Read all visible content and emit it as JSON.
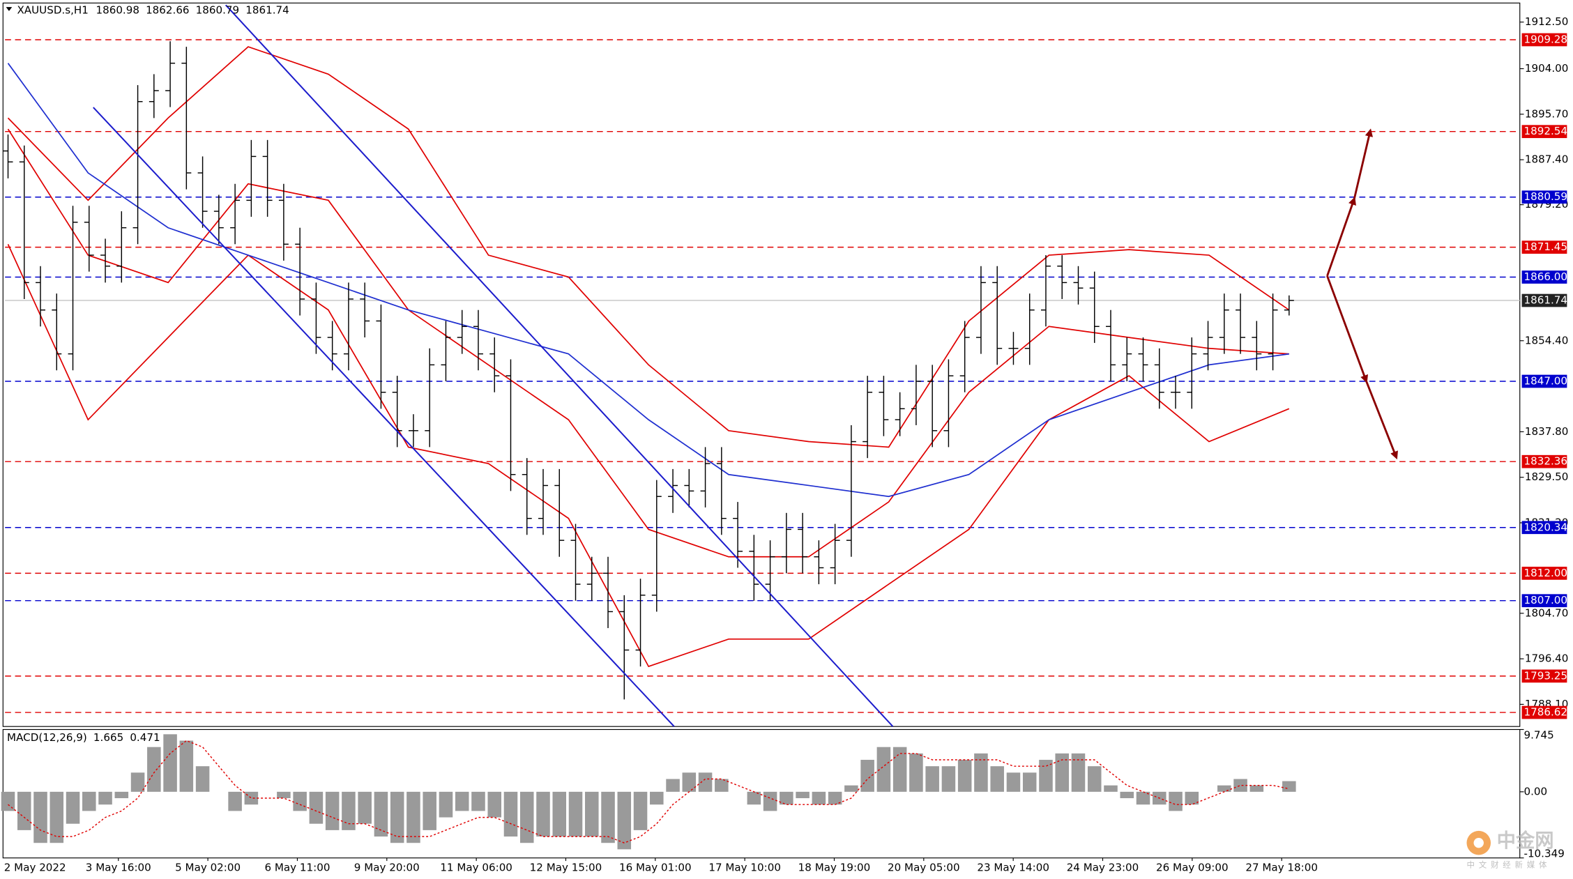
{
  "chart_data": {
    "type": "candlestick",
    "header": {
      "symbol": "XAUUSD.s,H1",
      "open": 1860.98,
      "high": 1862.66,
      "low": 1860.79,
      "close": 1861.74
    },
    "categories": [
      "2 May 2022",
      "3 May 16:00",
      "5 May 02:00",
      "6 May 11:00",
      "9 May 20:00",
      "11 May 06:00",
      "12 May 15:00",
      "16 May 01:00",
      "17 May 10:00",
      "18 May 19:00",
      "20 May 05:00",
      "23 May 14:00",
      "24 May 23:00",
      "26 May 09:00",
      "27 May 18:00"
    ],
    "candles": {
      "open": [
        1889,
        1887,
        1865,
        1860,
        1852,
        1876,
        1870,
        1868,
        1875,
        1898,
        1900,
        1905,
        1885,
        1878,
        1875,
        1880,
        1888,
        1880,
        1872,
        1862,
        1855,
        1852,
        1862,
        1858,
        1845,
        1838,
        1838,
        1850,
        1855,
        1857,
        1852,
        1848,
        1830,
        1822,
        1828,
        1818,
        1810,
        1812,
        1805,
        1798,
        1808,
        1826,
        1828,
        1827,
        1832,
        1822,
        1816,
        1810,
        1815,
        1820,
        1815,
        1813,
        1818,
        1836,
        1845,
        1840,
        1842,
        1847,
        1838,
        1848,
        1855,
        1865,
        1853,
        1853,
        1860,
        1868,
        1865,
        1864,
        1857,
        1850,
        1852,
        1850,
        1845,
        1845,
        1852,
        1855,
        1860,
        1855,
        1852,
        1860
      ],
      "high": [
        1892,
        1890,
        1868,
        1863,
        1879,
        1879,
        1873,
        1878,
        1901,
        1903,
        1909,
        1908,
        1888,
        1881,
        1883,
        1891,
        1891,
        1883,
        1875,
        1865,
        1858,
        1865,
        1865,
        1861,
        1848,
        1841,
        1853,
        1858,
        1860,
        1860,
        1855,
        1851,
        1833,
        1831,
        1831,
        1821,
        1815,
        1815,
        1808,
        1811,
        1829,
        1831,
        1831,
        1835,
        1835,
        1825,
        1819,
        1818,
        1823,
        1823,
        1818,
        1821,
        1839,
        1848,
        1848,
        1845,
        1850,
        1850,
        1851,
        1858,
        1868,
        1868,
        1856,
        1863,
        1870,
        1870,
        1868,
        1867,
        1860,
        1855,
        1855,
        1853,
        1848,
        1855,
        1858,
        1863,
        1863,
        1858,
        1863,
        1862.66
      ],
      "low": [
        1884,
        1862,
        1857,
        1849,
        1849,
        1867,
        1865,
        1865,
        1872,
        1895,
        1897,
        1882,
        1875,
        1872,
        1872,
        1877,
        1877,
        1869,
        1859,
        1852,
        1849,
        1849,
        1855,
        1842,
        1835,
        1835,
        1835,
        1847,
        1852,
        1849,
        1845,
        1827,
        1819,
        1819,
        1815,
        1807,
        1807,
        1802,
        1789,
        1795,
        1805,
        1823,
        1824,
        1824,
        1819,
        1813,
        1807,
        1807,
        1812,
        1812,
        1810,
        1810,
        1815,
        1833,
        1837,
        1837,
        1839,
        1835,
        1835,
        1845,
        1852,
        1850,
        1850,
        1850,
        1857,
        1862,
        1861,
        1854,
        1847,
        1847,
        1847,
        1842,
        1842,
        1842,
        1849,
        1852,
        1852,
        1849,
        1849,
        1859
      ],
      "close": [
        1887,
        1865,
        1860,
        1852,
        1876,
        1870,
        1868,
        1875,
        1898,
        1900,
        1905,
        1885,
        1878,
        1875,
        1880,
        1888,
        1880,
        1872,
        1862,
        1855,
        1852,
        1862,
        1858,
        1845,
        1838,
        1838,
        1850,
        1855,
        1857,
        1852,
        1848,
        1830,
        1822,
        1828,
        1818,
        1810,
        1812,
        1805,
        1798,
        1808,
        1826,
        1828,
        1827,
        1832,
        1822,
        1816,
        1810,
        1815,
        1820,
        1815,
        1813,
        1818,
        1836,
        1845,
        1840,
        1842,
        1847,
        1838,
        1848,
        1855,
        1865,
        1853,
        1853,
        1860,
        1868,
        1865,
        1864,
        1857,
        1850,
        1852,
        1850,
        1845,
        1845,
        1852,
        1855,
        1860,
        1855,
        1852,
        1860,
        1861.74
      ],
      "color": "#000000"
    },
    "overlays": [
      {
        "color": "#e00000",
        "values": [
          1895,
          1880,
          1895,
          1908,
          1903,
          1893,
          1870,
          1866,
          1850,
          1838,
          1836,
          1835,
          1858,
          1870,
          1871,
          1870,
          1860
        ]
      },
      {
        "color": "#e00000",
        "values": [
          1893,
          1870,
          1865,
          1883,
          1880,
          1860,
          1850,
          1840,
          1820,
          1815,
          1815,
          1825,
          1845,
          1857,
          1855,
          1853,
          1852
        ]
      },
      {
        "color": "#e00000",
        "values": [
          1872,
          1840,
          1855,
          1870,
          1860,
          1835,
          1832,
          1822,
          1795,
          1800,
          1800,
          1810,
          1820,
          1840,
          1848,
          1836,
          1842
        ]
      },
      {
        "color": "#1f2fd0",
        "values": [
          1905,
          1885,
          1875,
          1870,
          1865,
          1860,
          1856,
          1852,
          1840,
          1830,
          1828,
          1826,
          1830,
          1840,
          1845,
          1850,
          1852
        ]
      }
    ],
    "ylim": [
      1784.06,
      1915.61
    ],
    "yticks": [
      {
        "value": 1912.5,
        "label": "1912.50"
      },
      {
        "value": 1904,
        "label": "1904.00"
      },
      {
        "value": 1895.7,
        "label": "1895.70"
      },
      {
        "value": 1887.4,
        "label": "1887.40"
      },
      {
        "value": 1879.2,
        "label": "1879.20"
      },
      {
        "value": 1854.4,
        "label": "1854.40"
      },
      {
        "value": 1837.8,
        "label": "1837.80"
      },
      {
        "value": 1829.5,
        "label": "1829.50"
      },
      {
        "value": 1821.2,
        "label": "1821.20"
      },
      {
        "value": 1804.7,
        "label": "1804.70"
      },
      {
        "value": 1796.4,
        "label": "1796.40"
      },
      {
        "value": 1788.1,
        "label": "1788.10"
      }
    ],
    "levels": [
      {
        "value": 1909.28,
        "label": "1909.28",
        "color": "#e00000",
        "dashed": true
      },
      {
        "value": 1892.54,
        "label": "1892.54",
        "color": "#e00000",
        "dashed": true
      },
      {
        "value": 1880.59,
        "label": "1880.59",
        "color": "#0000cd",
        "dashed": true
      },
      {
        "value": 1871.45,
        "label": "1871.45",
        "color": "#e00000",
        "dashed": true
      },
      {
        "value": 1866.0,
        "label": "1866.00",
        "color": "#0000cd",
        "dashed": true
      },
      {
        "value": 1861.74,
        "label": "1861.74",
        "color": "#222222",
        "dashed": false
      },
      {
        "value": 1847.0,
        "label": "1847.00",
        "color": "#0000cd",
        "dashed": true
      },
      {
        "value": 1832.36,
        "label": "1832.36",
        "color": "#e00000",
        "dashed": true
      },
      {
        "value": 1820.34,
        "label": "1820.34",
        "color": "#0000cd",
        "dashed": true
      },
      {
        "value": 1812.0,
        "label": "1812.00",
        "color": "#e00000",
        "dashed": true
      },
      {
        "value": 1807.0,
        "label": "1807.00",
        "color": "#0000cd",
        "dashed": true
      },
      {
        "value": 1793.25,
        "label": "1793.25",
        "color": "#e00000",
        "dashed": true
      },
      {
        "value": 1786.62,
        "label": "1786.62",
        "color": "#e00000",
        "dashed": true
      }
    ],
    "macd": {
      "label": "MACD(12,26,9)",
      "main_value": 1.665,
      "signal_value": 0.471,
      "histogram": {
        "color": "#9a9a9a",
        "values": [
          -3,
          -6,
          -8,
          -8,
          -5,
          -3,
          -2,
          -1,
          3,
          7,
          9,
          8,
          4,
          0,
          -3,
          -2,
          0,
          -1,
          -3,
          -5,
          -6,
          -6,
          -5,
          -7,
          -8,
          -8,
          -6,
          -4,
          -3,
          -3,
          -4,
          -7,
          -8,
          -7,
          -7,
          -7,
          -7,
          -8,
          -9,
          -6,
          -2,
          2,
          3,
          3,
          2,
          0,
          -2,
          -3,
          -2,
          -1,
          -2,
          -2,
          1,
          5,
          7,
          7,
          6,
          4,
          4,
          5,
          6,
          4,
          3,
          3,
          5,
          6,
          6,
          4,
          1,
          -1,
          -2,
          -2,
          -3,
          -2,
          0,
          1,
          2,
          1,
          0,
          1.665
        ]
      },
      "signal": {
        "color": "#e00000",
        "values": [
          -2,
          -4,
          -6,
          -7,
          -7,
          -6,
          -4,
          -3,
          -1,
          3,
          6,
          8,
          7,
          4,
          1,
          -1,
          -1,
          -1,
          -2,
          -3,
          -4,
          -5,
          -5,
          -6,
          -7,
          -7,
          -7,
          -6,
          -5,
          -4,
          -4,
          -5,
          -6,
          -7,
          -7,
          -7,
          -7,
          -7,
          -8,
          -7,
          -5,
          -2,
          0,
          2,
          2,
          1,
          0,
          -1,
          -2,
          -2,
          -2,
          -2,
          -1,
          2,
          4,
          6,
          6,
          5,
          5,
          5,
          5,
          5,
          4,
          4,
          4,
          5,
          5,
          5,
          3,
          1,
          0,
          -1,
          -2,
          -2,
          -1,
          0,
          1,
          1,
          1,
          0.471
        ]
      },
      "ylim": [
        -10.349,
        9.745
      ],
      "yticks": [
        {
          "value": 9.745,
          "label": "9.745"
        },
        {
          "value": 0,
          "label": "0.00"
        },
        {
          "value": -10.349,
          "label": "-10.349"
        }
      ]
    },
    "watermark": {
      "text": "中金网",
      "subtext": "中文财经新媒体"
    }
  }
}
